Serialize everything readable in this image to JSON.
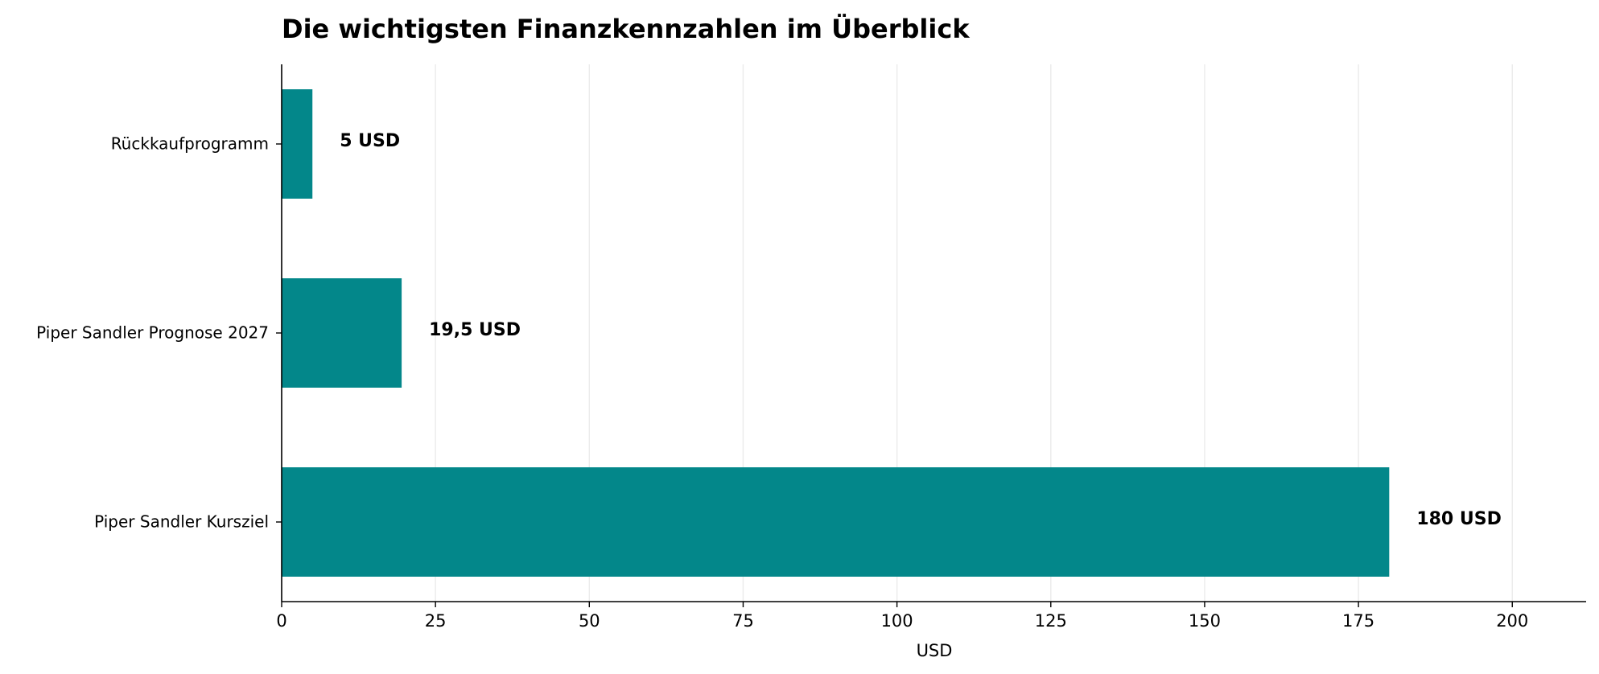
{
  "chart_data": {
    "type": "bar",
    "orientation": "horizontal",
    "title": "Die wichtigsten Finanzkennzahlen im Überblick",
    "xlabel": "USD",
    "ylabel": "",
    "categories": [
      "Rückkaufprogramm",
      "Piper Sandler Prognose 2027",
      "Piper Sandler Kursziel"
    ],
    "values": [
      5,
      19.5,
      180
    ],
    "value_labels": [
      "5 USD",
      "19,5 USD",
      "180 USD"
    ],
    "xlim": [
      0,
      212
    ],
    "xticks": [
      0,
      25,
      50,
      75,
      100,
      125,
      150,
      175,
      200
    ],
    "xtick_labels": [
      "0",
      "25",
      "50",
      "75",
      "100",
      "125",
      "150",
      "175",
      "200"
    ],
    "grid": "vertical",
    "bar_color": "#03878a",
    "grid_color": "#ebebeb"
  }
}
